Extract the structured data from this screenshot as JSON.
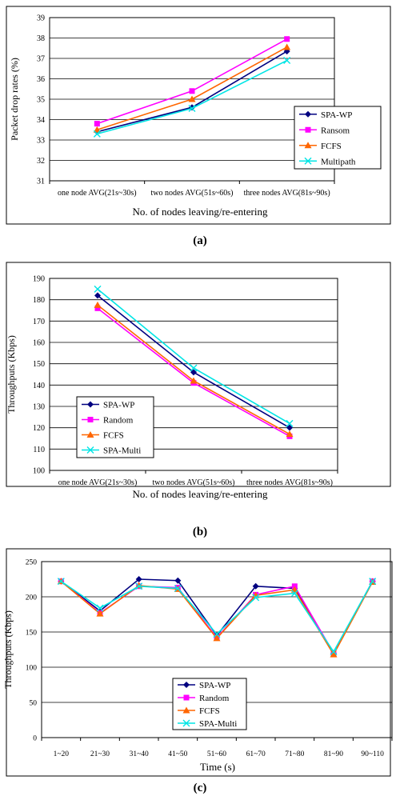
{
  "chart_data": [
    {
      "type": "line",
      "caption": "(a)",
      "categories": [
        "one node AVG(21s~30s)",
        "two nodes AVG(51s~60s)",
        "three nodes AVG(81s~90s)"
      ],
      "xlabel": "No. of nodes leaving/re-entering",
      "ylabel": "Packet drop rates (%)",
      "ylim": [
        31,
        39
      ],
      "yticks": [
        31,
        32,
        33,
        34,
        35,
        36,
        37,
        38,
        39
      ],
      "legend_position": "right",
      "series": [
        {
          "name": "SPA-WP",
          "values": [
            33.4,
            34.6,
            37.35
          ],
          "color": "#000080",
          "marker": "diamond"
        },
        {
          "name": "Ransom",
          "values": [
            33.8,
            35.4,
            37.95
          ],
          "color": "#ff00ff",
          "marker": "square"
        },
        {
          "name": "FCFS",
          "values": [
            33.5,
            35.0,
            37.55
          ],
          "color": "#ff6600",
          "marker": "triangle"
        },
        {
          "name": "Multipath",
          "values": [
            33.3,
            34.55,
            36.9
          ],
          "color": "#00e5e5",
          "marker": "x"
        }
      ]
    },
    {
      "type": "line",
      "caption": "(b)",
      "categories": [
        "one node AVG(21s~30s)",
        "two nodes AVG(51s~60s)",
        "three nodes AVG(81s~90s)"
      ],
      "xlabel": "No. of nodes leaving/re-entering",
      "ylabel": "Throughputs (Kbps)",
      "ylim": [
        100,
        190
      ],
      "yticks": [
        100,
        110,
        120,
        130,
        140,
        150,
        160,
        170,
        180,
        190
      ],
      "legend_position": "bottom-left",
      "series": [
        {
          "name": "SPA-WP",
          "values": [
            182,
            146,
            120
          ],
          "color": "#000080",
          "marker": "diamond"
        },
        {
          "name": "Random",
          "values": [
            176,
            141,
            116
          ],
          "color": "#ff00ff",
          "marker": "square"
        },
        {
          "name": "FCFS",
          "values": [
            177.5,
            142,
            117
          ],
          "color": "#ff6600",
          "marker": "triangle"
        },
        {
          "name": "SPA-Multi",
          "values": [
            185,
            148,
            122
          ],
          "color": "#00e5e5",
          "marker": "x"
        }
      ]
    },
    {
      "type": "line",
      "caption": "(c)",
      "categories": [
        "1~20",
        "21~30",
        "31~40",
        "41~50",
        "51~60",
        "61~70",
        "71~80",
        "81~90",
        "90~110"
      ],
      "xlabel": "Time (s)",
      "ylabel": "Throughputs (Kbps)",
      "ylim": [
        0,
        250
      ],
      "yticks": [
        0,
        50,
        100,
        150,
        200,
        250
      ],
      "legend_position": "bottom-center",
      "series": [
        {
          "name": "SPA-WP",
          "values": [
            222,
            180,
            225,
            223,
            145,
            215,
            212,
            120,
            222
          ],
          "color": "#000080",
          "marker": "diamond"
        },
        {
          "name": "Random",
          "values": [
            222,
            177,
            215,
            213,
            142,
            203,
            215,
            120,
            222
          ],
          "color": "#ff00ff",
          "marker": "square"
        },
        {
          "name": "FCFS",
          "values": [
            222,
            176,
            216,
            211,
            141,
            202,
            210,
            118,
            221
          ],
          "color": "#ff6600",
          "marker": "triangle"
        },
        {
          "name": "SPA-Multi",
          "values": [
            222,
            184,
            215,
            212,
            147,
            199,
            205,
            122,
            222
          ],
          "color": "#00e5e5",
          "marker": "x"
        }
      ]
    }
  ]
}
